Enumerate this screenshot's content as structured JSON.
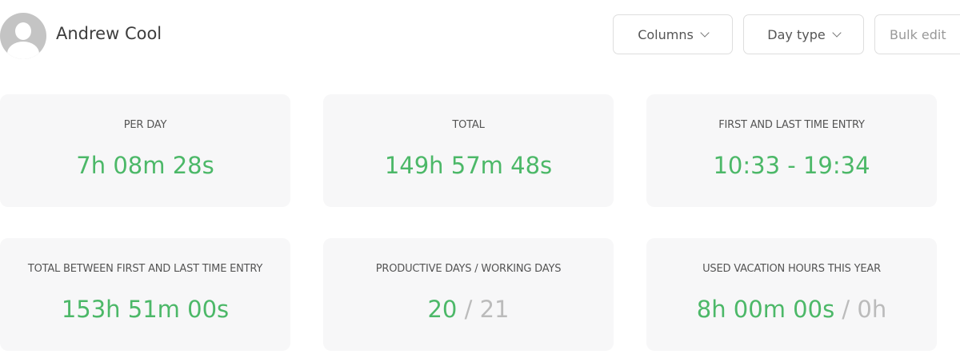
{
  "header": {
    "username": "Andrew Cool"
  },
  "toolbar": {
    "columns_label": "Columns",
    "day_type_label": "Day type",
    "bulk_edit_label": "Bulk edit"
  },
  "colors": {
    "accent": "#4cb868",
    "muted": "#bbbbbb",
    "card_bg": "#f7f7f8"
  },
  "cards": [
    {
      "label": "PER DAY",
      "value": "7h 08m 28s"
    },
    {
      "label": "TOTAL",
      "value": "149h 57m 48s"
    },
    {
      "label": "FIRST AND LAST TIME ENTRY",
      "value": "10:33 - 19:34"
    },
    {
      "label": "TOTAL BETWEEN FIRST AND LAST TIME ENTRY",
      "value": "153h 51m 00s"
    },
    {
      "label": "PRODUCTIVE DAYS / WORKING DAYS",
      "value": "20",
      "separator": "/",
      "secondary": "21"
    },
    {
      "label": "USED VACATION HOURS THIS YEAR",
      "value": "8h 00m 00s",
      "separator": "/",
      "secondary": "0h"
    }
  ]
}
